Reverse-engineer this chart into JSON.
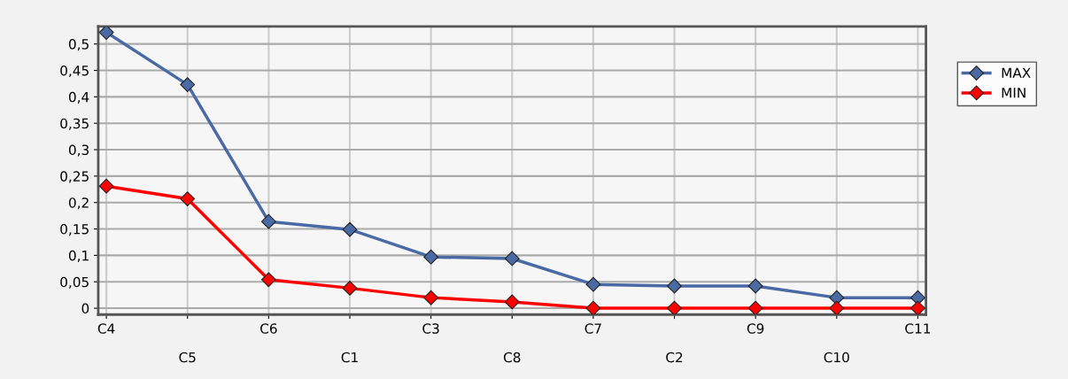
{
  "chart_data": {
    "type": "line",
    "categories": [
      "C4",
      "C5",
      "C6",
      "C1",
      "C3",
      "C8",
      "C7",
      "C2",
      "C9",
      "C10",
      "C11"
    ],
    "series": [
      {
        "name": "MAX",
        "color": "#4a6aa5",
        "values": [
          0.522,
          0.423,
          0.164,
          0.149,
          0.097,
          0.094,
          0.045,
          0.042,
          0.042,
          0.02,
          0.02
        ]
      },
      {
        "name": "MIN",
        "color": "#ff0000",
        "values": [
          0.231,
          0.207,
          0.054,
          0.038,
          0.02,
          0.012,
          0,
          0,
          0,
          0,
          0
        ]
      }
    ],
    "ylim": [
      -0.012,
      0.533
    ],
    "yticks": [
      0,
      {
        "value": 0.05,
        "label": "0,05"
      },
      {
        "value": 0.1,
        "label": "0,1"
      },
      {
        "value": 0.15,
        "label": "0,15"
      },
      {
        "value": 0.2,
        "label": "0,2"
      },
      {
        "value": 0.25,
        "label": "0,25"
      },
      {
        "value": 0.3,
        "label": "0,3"
      },
      {
        "value": 0.35,
        "label": "0,35"
      },
      {
        "value": 0.4,
        "label": "0,4"
      },
      {
        "value": 0.45,
        "label": "0,45"
      },
      {
        "value": 0.5,
        "label": "0,5"
      }
    ],
    "grid": true,
    "legend": "top right",
    "marker": "diamond",
    "line_style": "solid"
  }
}
